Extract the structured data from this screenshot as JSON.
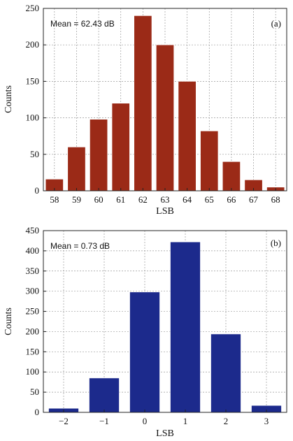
{
  "chart_data": [
    {
      "type": "bar",
      "panel_label": "(a)",
      "annotation": "Mean = 62.43 dB",
      "xlabel": "LSB",
      "ylabel": "Counts",
      "categories": [
        "58",
        "59",
        "60",
        "61",
        "62",
        "63",
        "64",
        "65",
        "66",
        "67",
        "68"
      ],
      "values": [
        16,
        60,
        98,
        120,
        240,
        200,
        150,
        82,
        40,
        15,
        5
      ],
      "ylim": [
        0,
        250
      ],
      "yticks": [
        "0",
        "50",
        "100",
        "150",
        "200",
        "250"
      ],
      "grid": true,
      "bar_color": "#9b2a17"
    },
    {
      "type": "bar",
      "panel_label": "(b)",
      "annotation": "Mean = 0.73 dB",
      "xlabel": "LSB",
      "ylabel": "Counts",
      "categories": [
        "−2",
        "−1",
        "0",
        "1",
        "2",
        "3"
      ],
      "values": [
        10,
        85,
        298,
        422,
        194,
        17
      ],
      "ylim": [
        0,
        450
      ],
      "yticks": [
        "0",
        "50",
        "100",
        "150",
        "200",
        "250",
        "300",
        "350",
        "400",
        "450"
      ],
      "grid": true,
      "bar_color": "#1c2a8c"
    }
  ]
}
